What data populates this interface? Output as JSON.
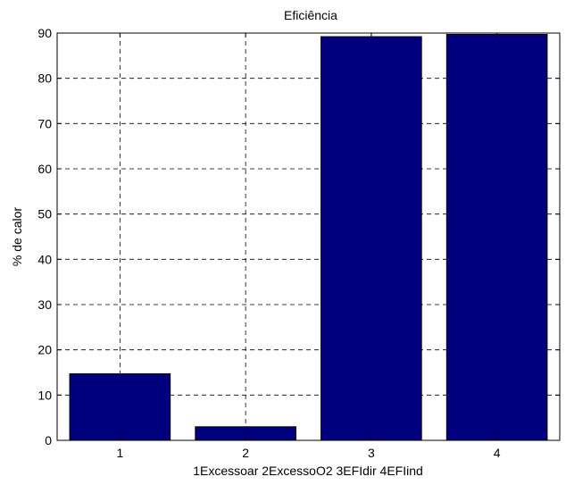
{
  "chart_data": {
    "type": "bar",
    "title": "Eficiência",
    "xlabel": "1Excessoar 2ExcessoO2 3EFIdir 4EFIind",
    "ylabel": "% de calor",
    "categories": [
      "1",
      "2",
      "3",
      "4"
    ],
    "values": [
      14.7,
      3.0,
      89.2,
      89.7
    ],
    "ylim": [
      0,
      90
    ],
    "yticks": [
      0,
      10,
      20,
      30,
      40,
      50,
      60,
      70,
      80,
      90
    ],
    "xlim": [
      0.5,
      4.5
    ],
    "grid": true,
    "bar_color": "#00007f"
  }
}
